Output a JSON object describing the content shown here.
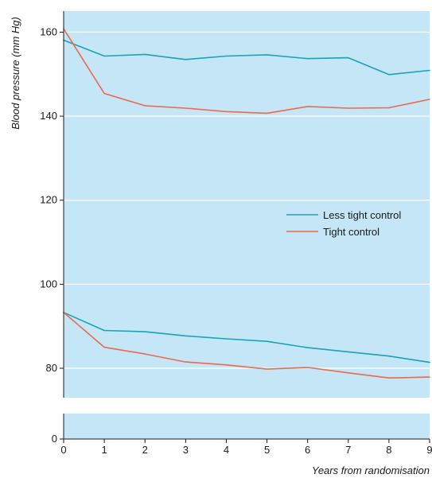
{
  "chart_data": {
    "type": "line",
    "title": "",
    "xlabel": "Years from randomisation",
    "ylabel": "Blood pressure (mm Hg)",
    "x": [
      0,
      1,
      2,
      3,
      4,
      5,
      6,
      7,
      8,
      9
    ],
    "xlim": [
      0,
      9
    ],
    "ylim_upper": [
      73,
      165
    ],
    "ylim_lower": [
      0,
      6
    ],
    "axis_break": [
      6,
      73
    ],
    "yticks": [
      0,
      80,
      100,
      120,
      140,
      160
    ],
    "xticks": [
      0,
      1,
      2,
      3,
      4,
      5,
      6,
      7,
      8,
      9
    ],
    "grid": "horizontal",
    "legend_position": "right-middle",
    "series": [
      {
        "name": "Less tight control",
        "color": "#1aa3b5",
        "systolic": [
          158.1,
          154.3,
          154.7,
          153.5,
          154.3,
          154.6,
          153.7,
          153.9,
          149.9,
          150.9
        ],
        "diastolic": [
          93.3,
          89.0,
          88.7,
          87.7,
          87.0,
          86.4,
          84.9,
          83.9,
          82.9,
          81.4
        ]
      },
      {
        "name": "Tight control",
        "color": "#ea6a4c",
        "systolic": [
          160.8,
          145.4,
          142.5,
          141.9,
          141.1,
          140.7,
          142.3,
          141.9,
          142.0,
          144.0
        ],
        "diastolic": [
          93.3,
          85.0,
          83.4,
          81.5,
          80.8,
          79.8,
          80.2,
          78.9,
          77.7,
          77.9
        ]
      }
    ],
    "plot_bg": "#c5e6f6"
  }
}
